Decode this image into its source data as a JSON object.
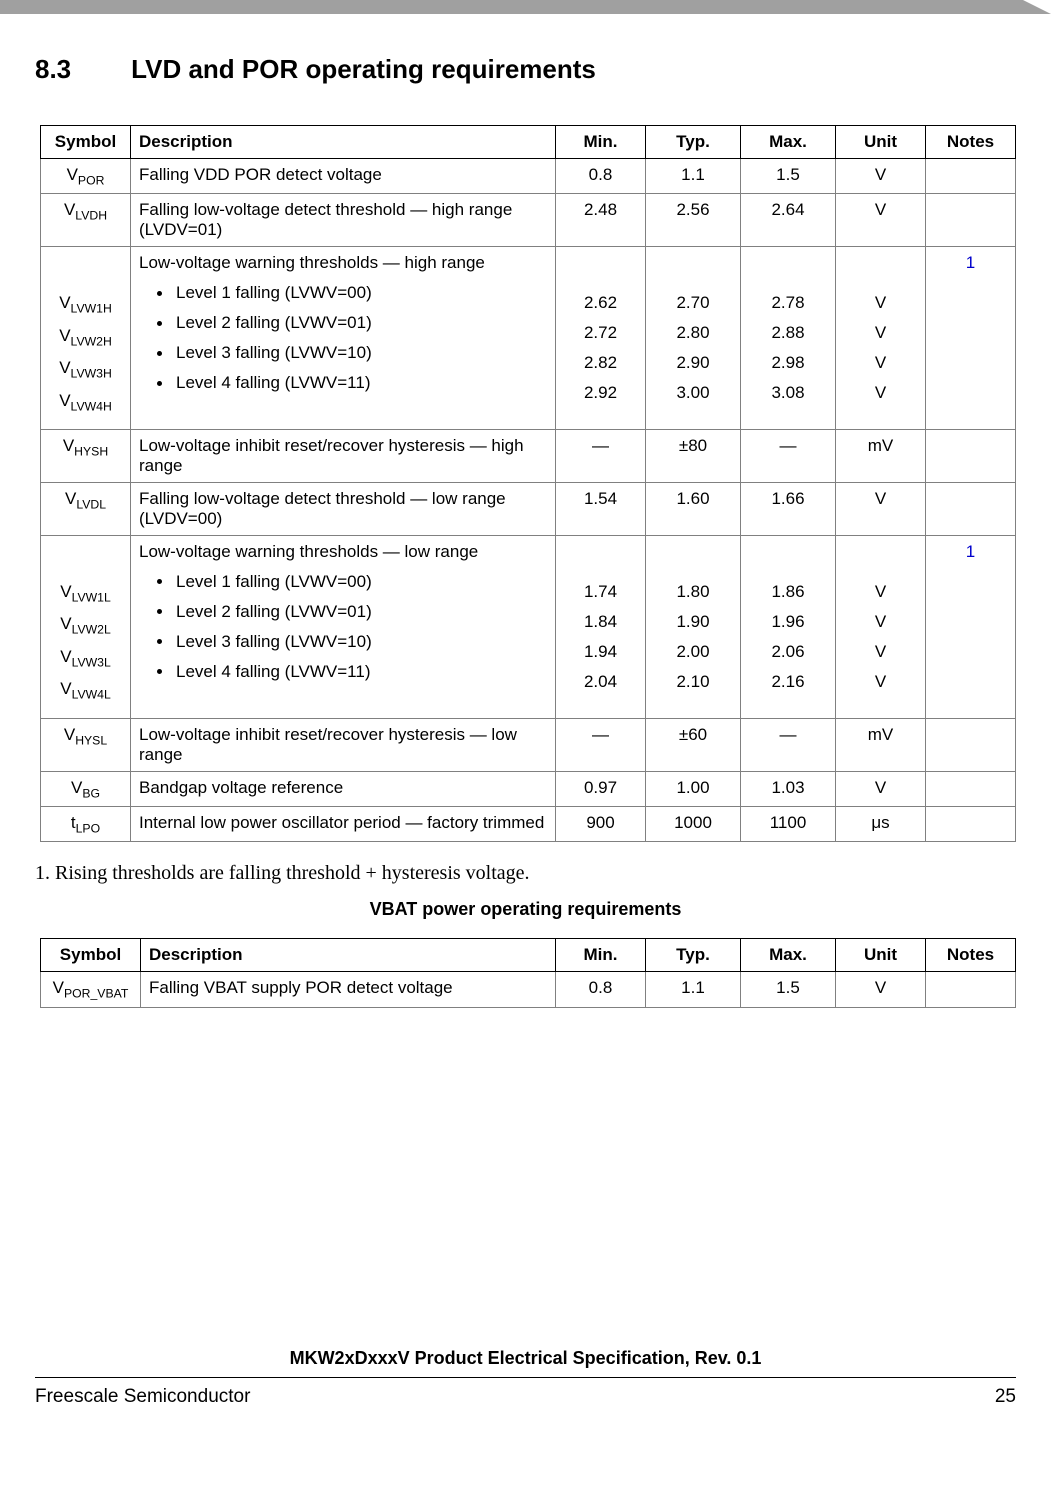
{
  "colors": {
    "topbar": "#a0a0a0",
    "border": "#808080",
    "headerBorder": "#000000",
    "noteLink": "#0000cc",
    "text": "#000000",
    "background": "#ffffff"
  },
  "heading": {
    "number": "8.3",
    "title": "LVD and POR operating requirements"
  },
  "table1": {
    "columns": [
      "Symbol",
      "Description",
      "Min.",
      "Typ.",
      "Max.",
      "Unit",
      "Notes"
    ],
    "rows": [
      {
        "sym": {
          "base": "V",
          "sub": "POR"
        },
        "desc": "Falling VDD POR detect voltage",
        "min": "0.8",
        "typ": "1.1",
        "max": "1.5",
        "unit": "V",
        "notes": ""
      },
      {
        "sym": {
          "base": "V",
          "sub": "LVDH"
        },
        "desc": "Falling low-voltage detect threshold — high range (LVDV=01)",
        "min": "2.48",
        "typ": "2.56",
        "max": "2.64",
        "unit": "V",
        "notes": ""
      },
      {
        "group": true,
        "heading": "Low-voltage warning thresholds — high range",
        "notes": "1",
        "items": [
          {
            "sym": {
              "base": "V",
              "sub": "LVW1H"
            },
            "label": "Level 1 falling (LVWV=00)",
            "min": "2.62",
            "typ": "2.70",
            "max": "2.78",
            "unit": "V"
          },
          {
            "sym": {
              "base": "V",
              "sub": "LVW2H"
            },
            "label": "Level 2 falling (LVWV=01)",
            "min": "2.72",
            "typ": "2.80",
            "max": "2.88",
            "unit": "V"
          },
          {
            "sym": {
              "base": "V",
              "sub": "LVW3H"
            },
            "label": "Level 3 falling (LVWV=10)",
            "min": "2.82",
            "typ": "2.90",
            "max": "2.98",
            "unit": "V"
          },
          {
            "sym": {
              "base": "V",
              "sub": "LVW4H"
            },
            "label": "Level 4 falling (LVWV=11)",
            "min": "2.92",
            "typ": "3.00",
            "max": "3.08",
            "unit": "V"
          }
        ]
      },
      {
        "sym": {
          "base": "V",
          "sub": "HYSH"
        },
        "desc": "Low-voltage inhibit reset/recover hysteresis — high range",
        "min": "—",
        "typ": "±80",
        "max": "—",
        "unit": "mV",
        "notes": ""
      },
      {
        "sym": {
          "base": "V",
          "sub": "LVDL"
        },
        "desc": "Falling low-voltage detect threshold — low range (LVDV=00)",
        "min": "1.54",
        "typ": "1.60",
        "max": "1.66",
        "unit": "V",
        "notes": ""
      },
      {
        "group": true,
        "heading": "Low-voltage warning thresholds — low range",
        "notes": "1",
        "items": [
          {
            "sym": {
              "base": "V",
              "sub": "LVW1L"
            },
            "label": "Level 1 falling (LVWV=00)",
            "min": "1.74",
            "typ": "1.80",
            "max": "1.86",
            "unit": "V"
          },
          {
            "sym": {
              "base": "V",
              "sub": "LVW2L"
            },
            "label": "Level 2 falling (LVWV=01)",
            "min": "1.84",
            "typ": "1.90",
            "max": "1.96",
            "unit": "V"
          },
          {
            "sym": {
              "base": "V",
              "sub": "LVW3L"
            },
            "label": "Level 3 falling (LVWV=10)",
            "min": "1.94",
            "typ": "2.00",
            "max": "2.06",
            "unit": "V"
          },
          {
            "sym": {
              "base": "V",
              "sub": "LVW4L"
            },
            "label": "Level 4 falling (LVWV=11)",
            "min": "2.04",
            "typ": "2.10",
            "max": "2.16",
            "unit": "V"
          }
        ]
      },
      {
        "sym": {
          "base": "V",
          "sub": "HYSL"
        },
        "desc": "Low-voltage inhibit reset/recover hysteresis — low range",
        "min": "—",
        "typ": "±60",
        "max": "—",
        "unit": "mV",
        "notes": ""
      },
      {
        "sym": {
          "base": "V",
          "sub": "BG"
        },
        "desc": "Bandgap voltage reference",
        "min": "0.97",
        "typ": "1.00",
        "max": "1.03",
        "unit": "V",
        "notes": ""
      },
      {
        "sym": {
          "base": "t",
          "sub": "LPO"
        },
        "desc": "Internal low power oscillator period — factory trimmed",
        "min": "900",
        "typ": "1000",
        "max": "1100",
        "unit": "μs",
        "notes": ""
      }
    ]
  },
  "footnote1": "1. Rising thresholds are falling threshold + hysteresis voltage.",
  "table2_title": "VBAT power operating requirements",
  "table2": {
    "columns": [
      "Symbol",
      "Description",
      "Min.",
      "Typ.",
      "Max.",
      "Unit",
      "Notes"
    ],
    "rows": [
      {
        "sym": {
          "base": "V",
          "sub": "POR_VBAT"
        },
        "desc": "Falling VBAT supply POR detect voltage",
        "min": "0.8",
        "typ": "1.1",
        "max": "1.5",
        "unit": "V",
        "notes": ""
      }
    ]
  },
  "footer": {
    "docTitle": "MKW2xDxxxV Product Electrical Specification, Rev. 0.1",
    "vendor": "Freescale Semiconductor",
    "page": "25"
  }
}
